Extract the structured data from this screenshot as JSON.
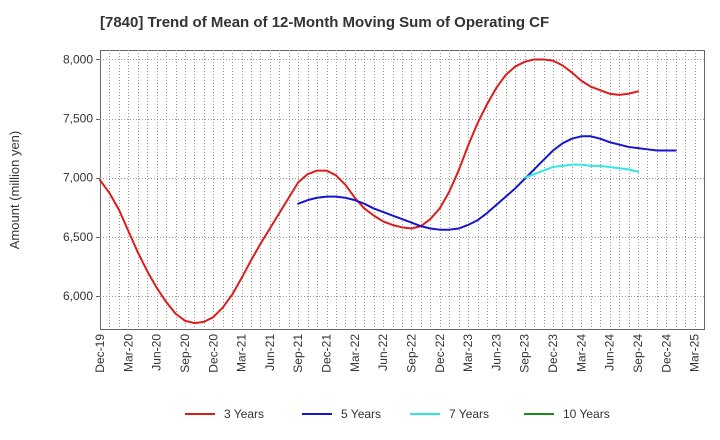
{
  "chart_data": {
    "type": "line",
    "title": "[7840]  Trend of Mean of 12-Month Moving Sum of Operating CF",
    "xlabel": "",
    "ylabel": "Amount (million yen)",
    "ylim": [
      5720,
      8080
    ],
    "yticks": [
      6000,
      6500,
      7000,
      7500,
      8000
    ],
    "ytick_labels": [
      "6,000",
      "6,500",
      "7,000",
      "7,500",
      "8,000"
    ],
    "xtick_labels": [
      "Dec-19",
      "Mar-20",
      "Jun-20",
      "Sep-20",
      "Dec-20",
      "Mar-21",
      "Jun-21",
      "Sep-21",
      "Dec-21",
      "Mar-22",
      "Jun-22",
      "Sep-22",
      "Dec-22",
      "Mar-23",
      "Jun-23",
      "Sep-23",
      "Dec-23",
      "Mar-24",
      "Jun-24",
      "Sep-24",
      "Dec-24",
      "Mar-25"
    ],
    "x_start": "Dec-19",
    "x_end": "Mar-25",
    "n_months": 64,
    "series": [
      {
        "name": "3 Years",
        "color": "#dd1c1c",
        "start_index": 0,
        "values": [
          6980,
          6870,
          6730,
          6550,
          6370,
          6210,
          6070,
          5950,
          5850,
          5790,
          5770,
          5780,
          5820,
          5900,
          6010,
          6150,
          6300,
          6440,
          6570,
          6700,
          6830,
          6960,
          7030,
          7060,
          7060,
          7020,
          6940,
          6830,
          6740,
          6680,
          6630,
          6600,
          6580,
          6570,
          6590,
          6650,
          6740,
          6880,
          7060,
          7270,
          7460,
          7620,
          7760,
          7870,
          7940,
          7980,
          8000,
          8000,
          7990,
          7950,
          7890,
          7820,
          7770,
          7740,
          7710,
          7700,
          7710,
          7730
        ]
      },
      {
        "name": "5 Years",
        "color": "#1515cc",
        "start_index": 21,
        "values": [
          6780,
          6810,
          6830,
          6840,
          6840,
          6830,
          6810,
          6780,
          6740,
          6710,
          6680,
          6650,
          6620,
          6590,
          6570,
          6560,
          6560,
          6570,
          6600,
          6640,
          6700,
          6770,
          6840,
          6910,
          6990,
          7070,
          7150,
          7230,
          7290,
          7330,
          7350,
          7350,
          7330,
          7300,
          7280,
          7260,
          7250,
          7240,
          7230,
          7230,
          7230
        ]
      },
      {
        "name": "7 Years",
        "color": "#33e6e6",
        "start_index": 45,
        "values": [
          7000,
          7030,
          7060,
          7090,
          7100,
          7110,
          7110,
          7100,
          7100,
          7090,
          7080,
          7070,
          7050
        ]
      },
      {
        "name": "10 Years",
        "color": "#1a8c1a",
        "start_index": 0,
        "values": []
      }
    ]
  }
}
